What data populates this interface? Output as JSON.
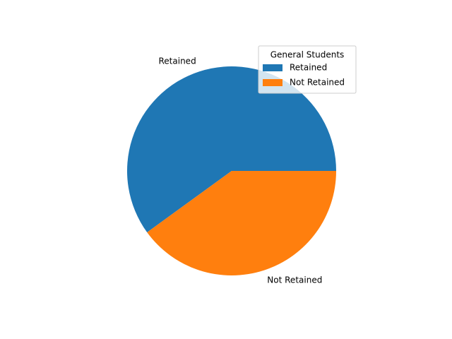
{
  "chart_data": {
    "type": "pie",
    "categories": [
      "Retained",
      "Not Retained"
    ],
    "values": [
      60,
      40
    ],
    "colors": [
      "#1f77b4",
      "#ff7f0e"
    ],
    "start_angle_deg": 0,
    "direction": "counterclockwise",
    "legend": {
      "title": "General Students",
      "placement": "top-right",
      "entries": [
        "Retained",
        "Not Retained"
      ]
    }
  }
}
